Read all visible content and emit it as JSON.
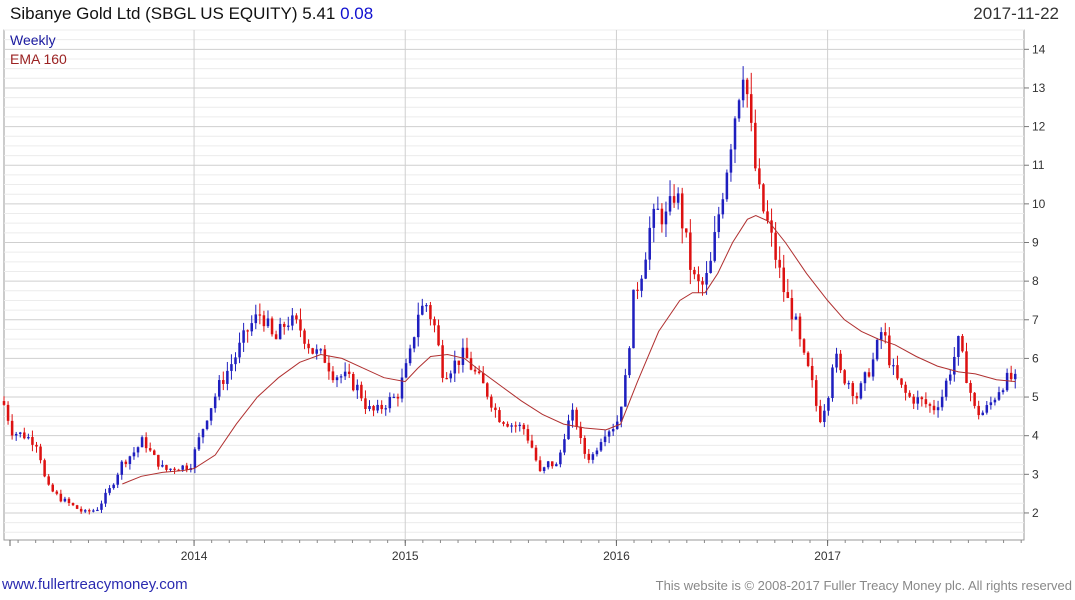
{
  "header": {
    "title": "Sibanye Gold Ltd (SBGL US EQUITY)",
    "price": "5.41",
    "change": "0.08",
    "date": "2017-11-22"
  },
  "footer": {
    "website": "www.fullertreacymoney.com",
    "copyright": "This website is © 2008-2017 Fuller Treacy Money plc. All rights reserved"
  },
  "chart_data": {
    "type": "candlestick",
    "frequency_label": "Weekly",
    "indicator_label": "EMA 160",
    "colors": {
      "up": "#1f1fbf",
      "down": "#dd1111",
      "ema": "#b03030",
      "grid": "#d9d9d9"
    },
    "grid": true,
    "y_axis": {
      "side": "right",
      "range": [
        1.3,
        14.5
      ],
      "ticks": [
        2,
        3,
        4,
        5,
        6,
        7,
        8,
        9,
        10,
        11,
        12,
        13,
        14
      ]
    },
    "x_axis": {
      "range": [
        2013.1,
        2017.93
      ],
      "ticks": [
        {
          "value": 2014,
          "label": "2014"
        },
        {
          "value": 2015,
          "label": "2015"
        },
        {
          "value": 2016,
          "label": "2016"
        },
        {
          "value": 2017,
          "label": "2017"
        }
      ]
    },
    "close_anchors": [
      [
        2013.1,
        4.8
      ],
      [
        2013.14,
        4.1
      ],
      [
        2013.2,
        4.0
      ],
      [
        2013.26,
        3.8
      ],
      [
        2013.3,
        2.7
      ],
      [
        2013.36,
        2.4
      ],
      [
        2013.42,
        2.2
      ],
      [
        2013.48,
        2.0
      ],
      [
        2013.54,
        2.1
      ],
      [
        2013.6,
        2.6
      ],
      [
        2013.66,
        3.3
      ],
      [
        2013.72,
        3.6
      ],
      [
        2013.76,
        3.9
      ],
      [
        2013.8,
        3.5
      ],
      [
        2013.86,
        3.1
      ],
      [
        2013.92,
        3.2
      ],
      [
        2013.98,
        3.2
      ],
      [
        2014.06,
        4.5
      ],
      [
        2014.12,
        5.3
      ],
      [
        2014.2,
        6.1
      ],
      [
        2014.26,
        6.8
      ],
      [
        2014.32,
        7.2
      ],
      [
        2014.38,
        6.4
      ],
      [
        2014.44,
        7.0
      ],
      [
        2014.5,
        6.8
      ],
      [
        2014.56,
        6.2
      ],
      [
        2014.62,
        6.0
      ],
      [
        2014.66,
        5.6
      ],
      [
        2014.72,
        5.5
      ],
      [
        2014.78,
        5.2
      ],
      [
        2014.82,
        4.7
      ],
      [
        2014.86,
        4.6
      ],
      [
        2014.92,
        4.9
      ],
      [
        2014.96,
        5.0
      ],
      [
        2015.02,
        6.0
      ],
      [
        2015.06,
        7.2
      ],
      [
        2015.1,
        7.4
      ],
      [
        2015.14,
        6.8
      ],
      [
        2015.18,
        5.6
      ],
      [
        2015.22,
        5.8
      ],
      [
        2015.28,
        6.1
      ],
      [
        2015.32,
        5.7
      ],
      [
        2015.38,
        5.2
      ],
      [
        2015.44,
        4.5
      ],
      [
        2015.5,
        4.3
      ],
      [
        2015.56,
        4.2
      ],
      [
        2015.6,
        3.7
      ],
      [
        2015.64,
        3.0
      ],
      [
        2015.68,
        3.3
      ],
      [
        2015.72,
        3.2
      ],
      [
        2015.76,
        4.2
      ],
      [
        2015.8,
        4.6
      ],
      [
        2015.84,
        3.6
      ],
      [
        2015.88,
        3.4
      ],
      [
        2015.94,
        4.1
      ],
      [
        2016.0,
        4.3
      ],
      [
        2016.04,
        5.3
      ],
      [
        2016.08,
        7.5
      ],
      [
        2016.12,
        8.3
      ],
      [
        2016.16,
        9.4
      ],
      [
        2016.2,
        9.8
      ],
      [
        2016.24,
        9.6
      ],
      [
        2016.28,
        10.4
      ],
      [
        2016.32,
        9.3
      ],
      [
        2016.36,
        8.1
      ],
      [
        2016.4,
        7.8
      ],
      [
        2016.44,
        8.2
      ],
      [
        2016.48,
        9.6
      ],
      [
        2016.52,
        10.9
      ],
      [
        2016.56,
        12.3
      ],
      [
        2016.6,
        13.6
      ],
      [
        2016.62,
        12.8
      ],
      [
        2016.65,
        11.2
      ],
      [
        2016.68,
        10.1
      ],
      [
        2016.72,
        9.4
      ],
      [
        2016.76,
        8.5
      ],
      [
        2016.8,
        7.6
      ],
      [
        2016.84,
        7.1
      ],
      [
        2016.88,
        6.1
      ],
      [
        2016.92,
        5.5
      ],
      [
        2016.96,
        4.4
      ],
      [
        2017.0,
        5.0
      ],
      [
        2017.03,
        6.2
      ],
      [
        2017.06,
        5.6
      ],
      [
        2017.1,
        5.4
      ],
      [
        2017.14,
        5.0
      ],
      [
        2017.18,
        5.5
      ],
      [
        2017.22,
        6.0
      ],
      [
        2017.26,
        6.8
      ],
      [
        2017.3,
        5.8
      ],
      [
        2017.34,
        5.3
      ],
      [
        2017.38,
        5.0
      ],
      [
        2017.44,
        4.9
      ],
      [
        2017.5,
        4.7
      ],
      [
        2017.54,
        5.0
      ],
      [
        2017.58,
        5.7
      ],
      [
        2017.62,
        6.4
      ],
      [
        2017.66,
        5.5
      ],
      [
        2017.7,
        4.6
      ],
      [
        2017.74,
        4.6
      ],
      [
        2017.78,
        4.9
      ],
      [
        2017.82,
        5.3
      ],
      [
        2017.86,
        5.5
      ],
      [
        2017.89,
        5.41
      ]
    ],
    "ema_160": [
      [
        2013.66,
        2.75
      ],
      [
        2013.75,
        2.95
      ],
      [
        2013.85,
        3.05
      ],
      [
        2013.95,
        3.1
      ],
      [
        2014.0,
        3.15
      ],
      [
        2014.1,
        3.5
      ],
      [
        2014.2,
        4.3
      ],
      [
        2014.3,
        5.0
      ],
      [
        2014.4,
        5.5
      ],
      [
        2014.5,
        5.9
      ],
      [
        2014.6,
        6.1
      ],
      [
        2014.7,
        6.0
      ],
      [
        2014.8,
        5.75
      ],
      [
        2014.9,
        5.5
      ],
      [
        2015.0,
        5.4
      ],
      [
        2015.06,
        5.75
      ],
      [
        2015.12,
        6.05
      ],
      [
        2015.2,
        6.1
      ],
      [
        2015.28,
        6.0
      ],
      [
        2015.35,
        5.7
      ],
      [
        2015.45,
        5.3
      ],
      [
        2015.55,
        4.9
      ],
      [
        2015.65,
        4.55
      ],
      [
        2015.75,
        4.3
      ],
      [
        2015.85,
        4.2
      ],
      [
        2015.95,
        4.15
      ],
      [
        2016.02,
        4.3
      ],
      [
        2016.1,
        5.4
      ],
      [
        2016.2,
        6.7
      ],
      [
        2016.3,
        7.5
      ],
      [
        2016.36,
        7.7
      ],
      [
        2016.42,
        7.7
      ],
      [
        2016.48,
        8.2
      ],
      [
        2016.55,
        9.0
      ],
      [
        2016.62,
        9.6
      ],
      [
        2016.66,
        9.7
      ],
      [
        2016.72,
        9.55
      ],
      [
        2016.8,
        9.0
      ],
      [
        2016.9,
        8.2
      ],
      [
        2017.0,
        7.5
      ],
      [
        2017.08,
        7.0
      ],
      [
        2017.16,
        6.7
      ],
      [
        2017.24,
        6.5
      ],
      [
        2017.32,
        6.35
      ],
      [
        2017.42,
        6.05
      ],
      [
        2017.52,
        5.8
      ],
      [
        2017.62,
        5.65
      ],
      [
        2017.7,
        5.6
      ],
      [
        2017.8,
        5.45
      ],
      [
        2017.89,
        5.4
      ]
    ]
  }
}
